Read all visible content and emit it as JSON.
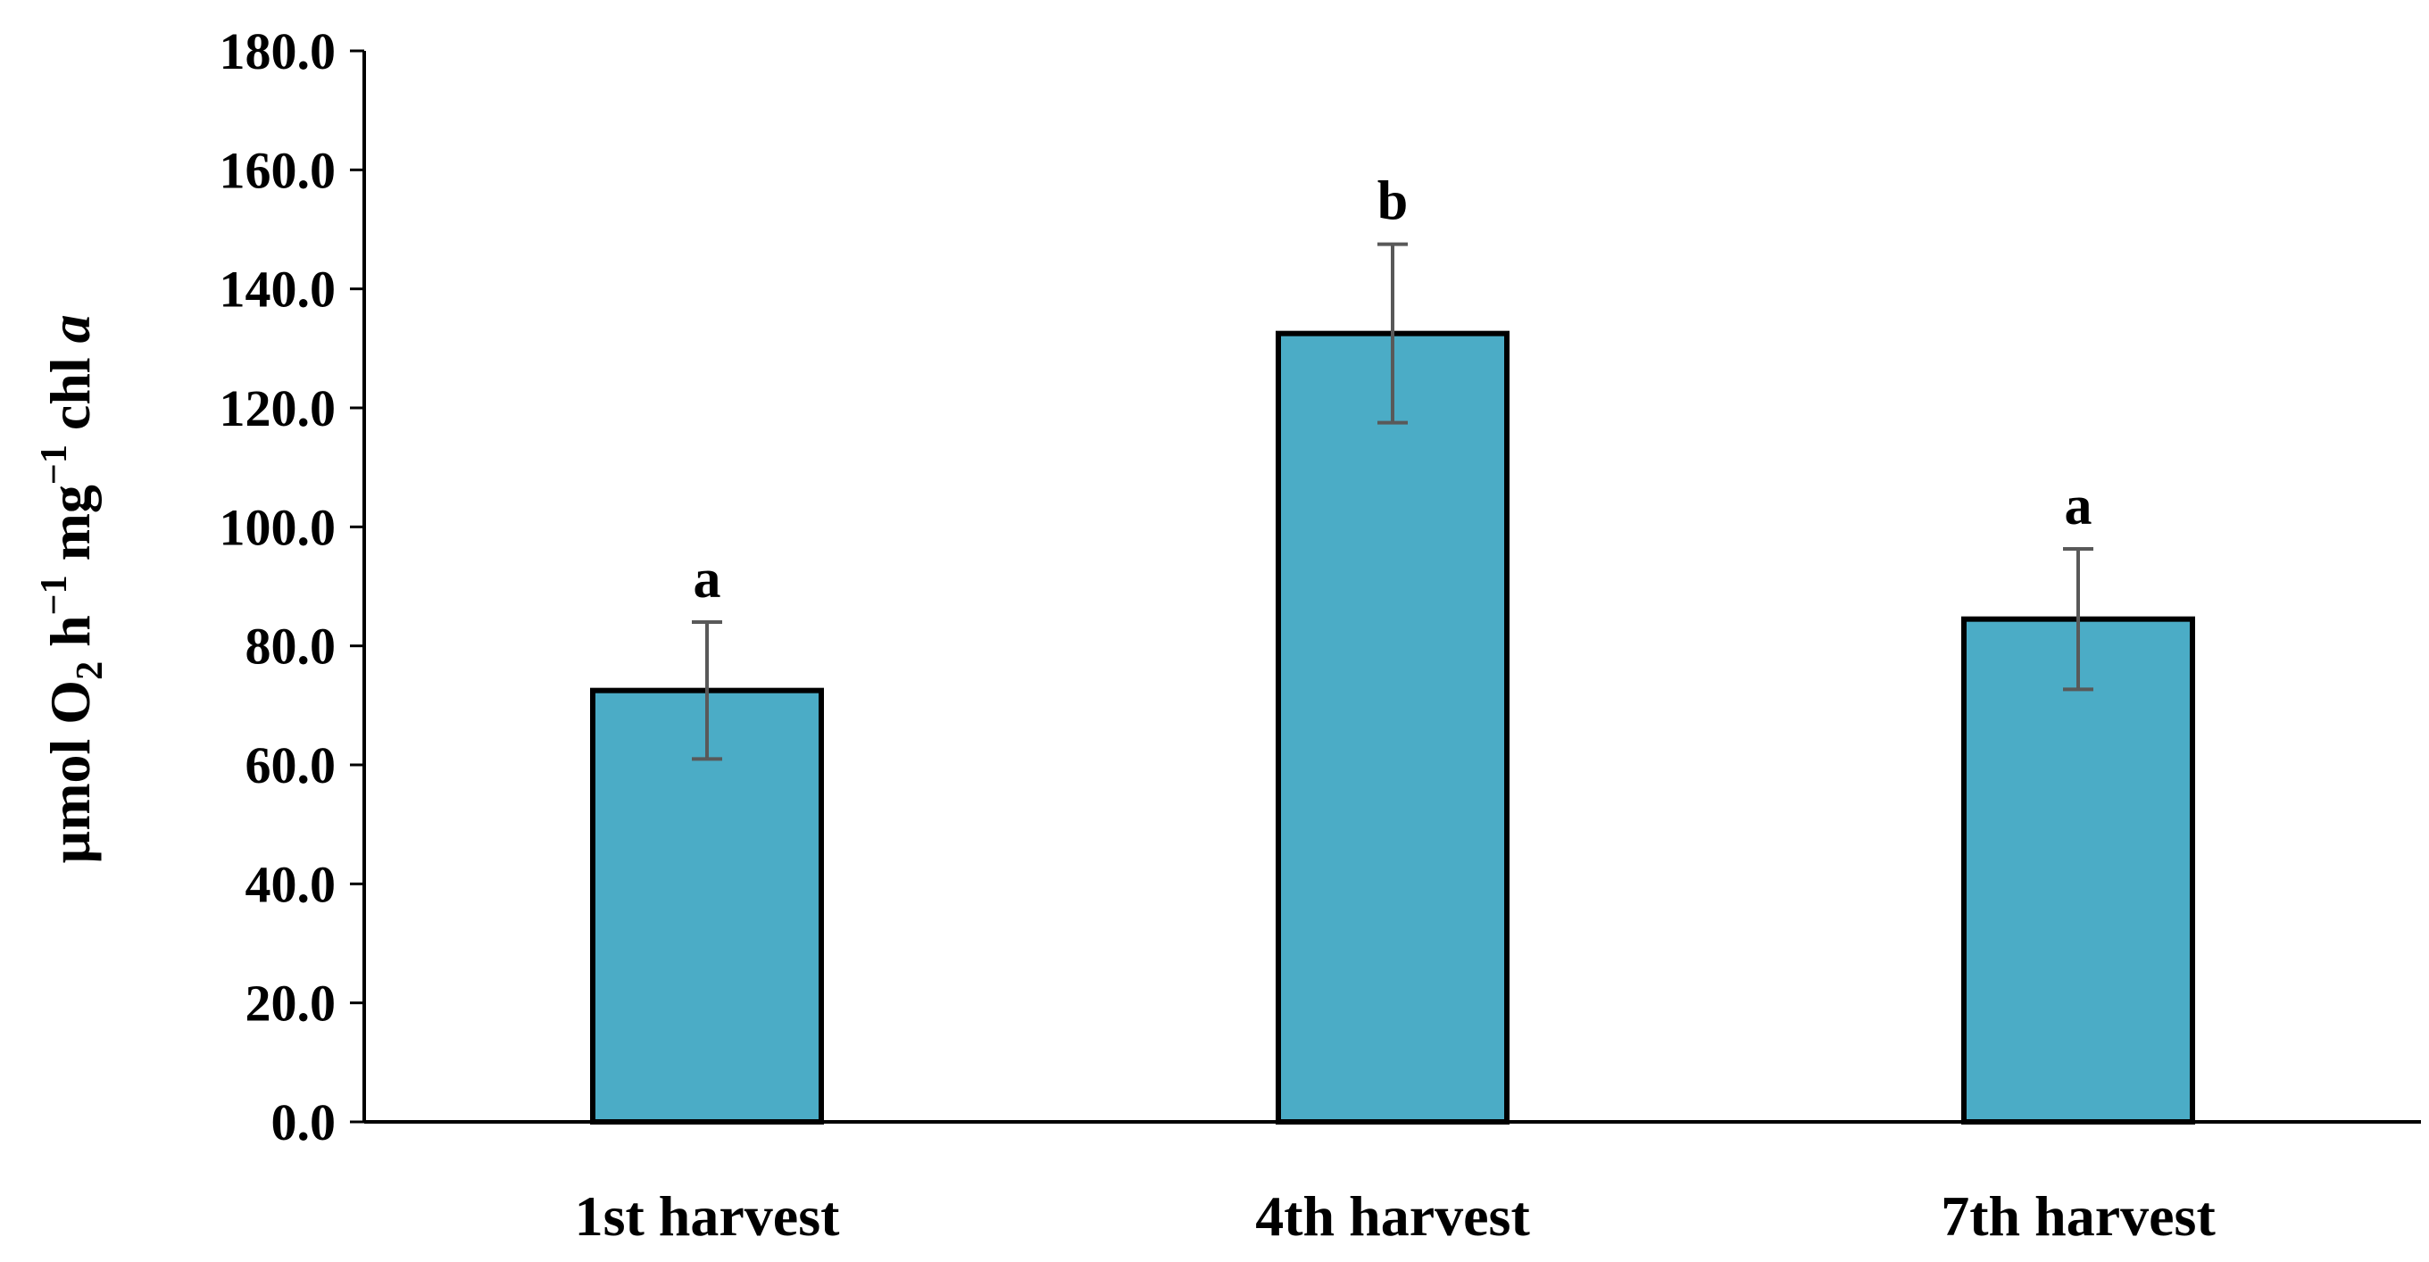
{
  "chart_data": {
    "type": "bar",
    "title": "",
    "xlabel": "",
    "ylabel": {
      "parts": [
        "µmol O",
        "2",
        " h",
        "−1",
        " mg",
        "−1",
        " chl ",
        "a"
      ]
    },
    "categories": [
      "1st harvest",
      "4th harvest",
      "7th harvest"
    ],
    "values": [
      72.5,
      132.5,
      84.5
    ],
    "error": [
      11.5,
      15.0,
      11.8
    ],
    "annotations": [
      "a",
      "b",
      "a"
    ],
    "ylim": [
      0,
      180
    ],
    "yticks": [
      0,
      20,
      40,
      60,
      80,
      100,
      120,
      140,
      160,
      180
    ],
    "ytick_labels": [
      "0.0",
      "20.0",
      "40.0",
      "60.0",
      "80.0",
      "100.0",
      "120.0",
      "140.0",
      "160.0",
      "180.0"
    ],
    "grid": false,
    "legend": "none",
    "colors": {
      "bar_fill": "#4bacc6",
      "bar_stroke": "#000000",
      "error_bar": "#595959",
      "axis": "#000000"
    }
  }
}
